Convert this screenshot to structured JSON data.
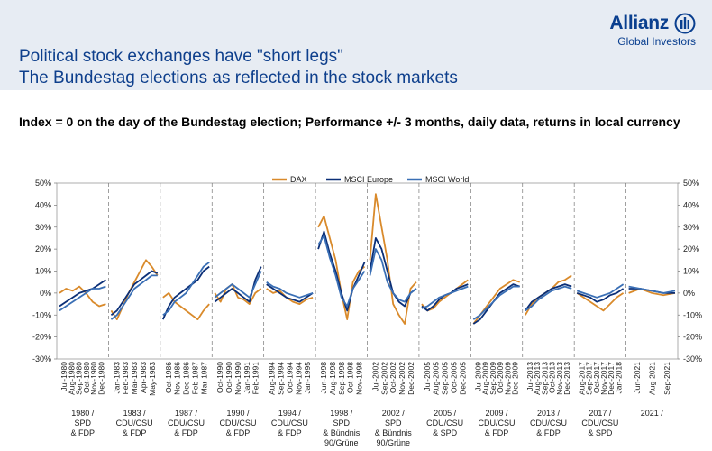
{
  "header": {
    "title_line1": "Political stock exchanges have \"short legs\"",
    "title_line2": "The Bundestag elections as reflected in the stock markets",
    "logo_name": "Allianz",
    "logo_sub": "Global Investors"
  },
  "subtitle": "Index = 0 on the day of the Bundestag election; Performance +/- 3 months, daily data, returns in local currency",
  "colors": {
    "dax": "#d98a2b",
    "msci_europe": "#0b2f77",
    "msci_world": "#3a6fb5",
    "background": "#ffffff",
    "header_band": "#e7ecf3",
    "title": "#0e3f8c"
  },
  "chart_data": {
    "type": "line",
    "ylim": [
      -30,
      50
    ],
    "y_ticks": [
      "50%",
      "40%",
      "30%",
      "20%",
      "10%",
      "0%",
      "-10%",
      "-20%",
      "-30%"
    ],
    "legend": [
      "DAX",
      "MSCI Europe",
      "MSCI World"
    ],
    "legend_position": "top-center",
    "elections": [
      {
        "label": [
          "1980 /",
          "SPD",
          "& FDP"
        ],
        "dates": [
          "Jul-1980",
          "Aug-1980",
          "Sep-1980",
          "Oct-1980",
          "Nov-1980",
          "Dec-1980"
        ]
      },
      {
        "label": [
          "1983 /",
          "CDU/CSU",
          "& FDP"
        ],
        "dates": [
          "Jan-1983",
          "Feb-1983",
          "Mar-1983",
          "Apr-1983",
          "May-1983"
        ]
      },
      {
        "label": [
          "1987 /",
          "CDU/CSU",
          "& FDP"
        ],
        "dates": [
          "Oct-1986",
          "Nov-1986",
          "Dec-1986",
          "Feb-1987",
          "Mar-1987"
        ]
      },
      {
        "label": [
          "1990 /",
          "CDU/CSU",
          "& FDP"
        ],
        "dates": [
          "Oct-1990",
          "Oct-1990",
          "Nov-1990",
          "Jan-1991",
          "Feb-1991"
        ]
      },
      {
        "label": [
          "1994 /",
          "CDU/CSU",
          "& FDP"
        ],
        "dates": [
          "Aug-1994",
          "Sep-1994",
          "Oct-1994",
          "Nov-1994",
          "Jan-1995"
        ]
      },
      {
        "label": [
          "1998 /",
          "SPD",
          "& Bündnis",
          "90/Grüne"
        ],
        "dates": [
          "Jun-1998",
          "Aug-1998",
          "Sep-1998",
          "Oct-1998",
          "Nov-1998"
        ]
      },
      {
        "label": [
          "2002 /",
          "SPD",
          "& Bündnis",
          "90/Grüne"
        ],
        "dates": [
          "Jul-2002",
          "Sep-2002",
          "Oct-2002",
          "Nov-2002",
          "Dec-2002"
        ]
      },
      {
        "label": [
          "2005 /",
          "CDU/CSU",
          "& SPD"
        ],
        "dates": [
          "Jul-2005",
          "Aug-2005",
          "Sep-2005",
          "Oct-2005",
          "Dec-2005"
        ]
      },
      {
        "label": [
          "2009 /",
          "CDU/CSU",
          "& FDP"
        ],
        "dates": [
          "Jul-2009",
          "Aug-2009",
          "Sep-2009",
          "Oct-2009",
          "Nov-2009",
          "Dec-2009"
        ]
      },
      {
        "label": [
          "2013 /",
          "CDU/CSU",
          "& FDP"
        ],
        "dates": [
          "Jul-2013",
          "Aug-2013",
          "Sep-2013",
          "Oct-2013",
          "Nov-2013",
          "Dec-2013"
        ]
      },
      {
        "label": [
          "2017 /",
          "CDU/CSU",
          "& SPD"
        ],
        "dates": [
          "Aug-2017",
          "Sep-2017",
          "Oct-2017",
          "Nov-2017",
          "Dec-2017",
          "Jan-2018"
        ]
      },
      {
        "label": [
          "2021 /"
        ],
        "dates": [
          "Jun-2021",
          "Aug-2021",
          "Sep-2021"
        ]
      }
    ],
    "series": [
      {
        "name": "DAX",
        "values": [
          [
            0,
            2,
            1,
            3,
            0,
            -4,
            -6,
            -5
          ],
          [
            -8,
            -12,
            -6,
            0,
            5,
            10,
            15,
            12,
            8
          ],
          [
            -2,
            0,
            -4,
            -6,
            -8,
            -10,
            -12,
            -8,
            -5
          ],
          [
            0,
            -4,
            2,
            4,
            -2,
            -3,
            -5,
            0,
            2
          ],
          [
            2,
            0,
            1,
            -2,
            -4,
            -5,
            -3,
            -2
          ],
          [
            30,
            35,
            25,
            15,
            0,
            -12,
            5,
            10,
            12
          ],
          [
            15,
            45,
            30,
            15,
            -5,
            -10,
            -14,
            2,
            5
          ],
          [
            -5,
            -8,
            -7,
            -4,
            -2,
            0,
            2,
            4,
            6
          ],
          [
            -14,
            -10,
            -6,
            -2,
            2,
            4,
            6,
            5
          ],
          [
            -10,
            -5,
            -2,
            0,
            2,
            5,
            6,
            8
          ],
          [
            0,
            -2,
            -4,
            -6,
            -8,
            -5,
            -2,
            0
          ],
          [
            0,
            2,
            0,
            -1,
            0
          ]
        ]
      },
      {
        "name": "MSCI Europe",
        "values": [
          [
            -6,
            -4,
            -2,
            0,
            1,
            2,
            4,
            6
          ],
          [
            -10,
            -8,
            -4,
            0,
            4,
            6,
            8,
            10,
            9
          ],
          [
            -12,
            -6,
            -2,
            0,
            2,
            4,
            6,
            10,
            12
          ],
          [
            -4,
            -2,
            0,
            2,
            0,
            -2,
            -4,
            6,
            12
          ],
          [
            4,
            2,
            0,
            -2,
            -3,
            -4,
            -2,
            0
          ],
          [
            20,
            28,
            18,
            10,
            0,
            -8,
            2,
            8,
            14
          ],
          [
            10,
            25,
            20,
            10,
            0,
            -4,
            -6,
            0,
            2
          ],
          [
            -6,
            -8,
            -6,
            -3,
            -1,
            0,
            2,
            3,
            4
          ],
          [
            -14,
            -12,
            -8,
            -4,
            0,
            2,
            4,
            3
          ],
          [
            -8,
            -4,
            -2,
            0,
            2,
            3,
            4,
            3
          ],
          [
            0,
            -1,
            -2,
            -4,
            -3,
            -1,
            0,
            2
          ],
          [
            2,
            2,
            1,
            0,
            0
          ]
        ]
      },
      {
        "name": "MSCI World",
        "values": [
          [
            -8,
            -6,
            -4,
            -2,
            0,
            2,
            2,
            3
          ],
          [
            -12,
            -10,
            -6,
            -2,
            2,
            4,
            6,
            8,
            8
          ],
          [
            -10,
            -8,
            -4,
            -2,
            0,
            4,
            8,
            12,
            14
          ],
          [
            -2,
            0,
            2,
            4,
            2,
            0,
            -2,
            4,
            10
          ],
          [
            5,
            3,
            2,
            0,
            -1,
            -2,
            -1,
            0
          ],
          [
            22,
            26,
            16,
            8,
            -2,
            -6,
            2,
            6,
            10
          ],
          [
            8,
            20,
            15,
            5,
            0,
            -3,
            -4,
            0,
            2
          ],
          [
            -7,
            -6,
            -4,
            -2,
            -1,
            0,
            1,
            2,
            3
          ],
          [
            -12,
            -10,
            -7,
            -4,
            -1,
            1,
            3,
            3
          ],
          [
            -8,
            -6,
            -3,
            -1,
            1,
            2,
            3,
            2
          ],
          [
            1,
            0,
            -1,
            -2,
            -1,
            0,
            2,
            4
          ],
          [
            3,
            2,
            1,
            0,
            1
          ]
        ]
      }
    ]
  }
}
